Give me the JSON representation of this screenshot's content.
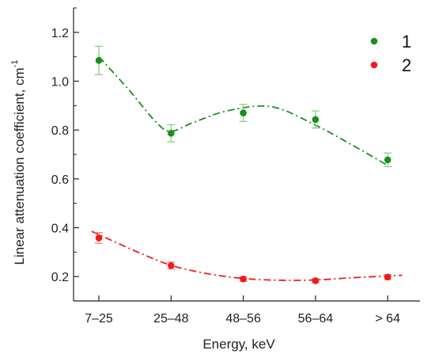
{
  "chart_data": {
    "type": "scatter",
    "categories": [
      "7–25",
      "25–48",
      "48–56",
      "56–64",
      "> 64"
    ],
    "xlabel": "Energy, keV",
    "ylabel": "Linear attenuation coefficient, cm",
    "ylabel_superscript": "-1",
    "ylim": [
      0.1,
      1.3
    ],
    "yticks": [
      "0.2",
      "0.4",
      "0.6",
      "0.8",
      "1.0",
      "1.2"
    ],
    "legend_position": "top-right",
    "series": [
      {
        "name": "1",
        "color": "#1a8f1a",
        "error_color": "#86d386",
        "line_style": "dash-dot",
        "values": [
          1.085,
          0.787,
          0.87,
          0.843,
          0.678
        ],
        "errors": [
          0.058,
          0.035,
          0.035,
          0.035,
          0.028
        ],
        "fit": [
          [
            0,
            1.1
          ],
          [
            0.4,
            0.97
          ],
          [
            0.8,
            0.83
          ],
          [
            1.0,
            0.795
          ],
          [
            1.3,
            0.83
          ],
          [
            1.8,
            0.88
          ],
          [
            2.4,
            0.895
          ],
          [
            3.0,
            0.82
          ],
          [
            3.5,
            0.74
          ],
          [
            4.0,
            0.655
          ]
        ]
      },
      {
        "name": "2",
        "color": "#ee1c1c",
        "error_color": "#f08888",
        "line_style": "dash-dot",
        "values": [
          0.358,
          0.245,
          0.19,
          0.183,
          0.198
        ],
        "errors": [
          0.022,
          0.014,
          0.01,
          0.008,
          0.01
        ],
        "fit": [
          [
            -0.1,
            0.385
          ],
          [
            0.5,
            0.305
          ],
          [
            1.0,
            0.246
          ],
          [
            1.5,
            0.212
          ],
          [
            2.0,
            0.192
          ],
          [
            2.5,
            0.185
          ],
          [
            3.0,
            0.186
          ],
          [
            3.5,
            0.195
          ],
          [
            4.2,
            0.205
          ]
        ]
      }
    ]
  }
}
